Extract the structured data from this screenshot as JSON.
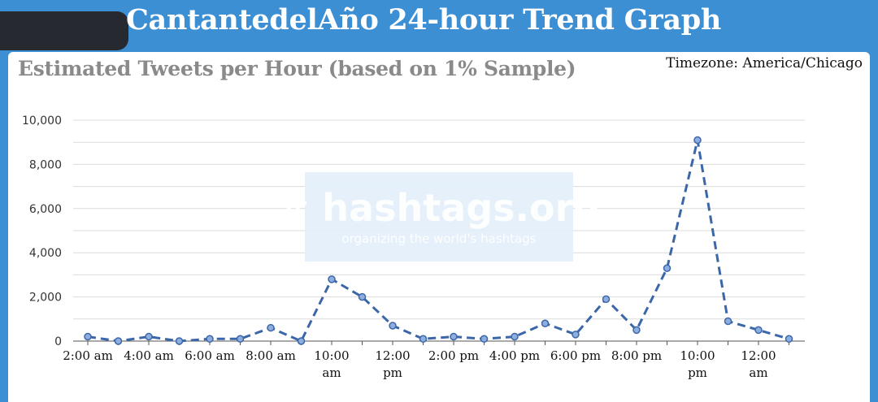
{
  "header": {
    "title": "CantantedelAño 24-hour Trend Graph"
  },
  "timezone": "Timezone: America/Chicago",
  "watermark": {
    "logo": "# hashtags.org",
    "tagline": "organizing the world's hashtags"
  },
  "colors": {
    "header_bg": "#3d8fd4",
    "line": "#3b67a8",
    "point_fill": "#8faee0"
  },
  "chart_data": {
    "type": "line",
    "title": "Estimated Tweets per Hour (based on 1% Sample)",
    "xlabel": "",
    "ylabel": "",
    "ylim": [
      0,
      10000
    ],
    "yticks": [
      0,
      2000,
      4000,
      6000,
      8000,
      10000
    ],
    "ytick_labels": [
      "0",
      "2,000",
      "4,000",
      "6,000",
      "8,000",
      "10,000"
    ],
    "x": [
      "2:00 am",
      "3:00 am",
      "4:00 am",
      "5:00 am",
      "6:00 am",
      "7:00 am",
      "8:00 am",
      "9:00 am",
      "10:00 am",
      "11:00 am",
      "12:00 pm",
      "1:00 pm",
      "2:00 pm",
      "3:00 pm",
      "4:00 pm",
      "5:00 pm",
      "6:00 pm",
      "7:00 pm",
      "8:00 pm",
      "9:00 pm",
      "10:00 pm",
      "11:00 pm",
      "12:00 am",
      "1:00 am"
    ],
    "xtick_labels": [
      [
        "2:00 am"
      ],
      [
        "4:00 am"
      ],
      [
        "6:00 am"
      ],
      [
        "8:00 am"
      ],
      [
        "10:00",
        "am"
      ],
      [
        "12:00",
        "pm"
      ],
      [
        "2:00 pm"
      ],
      [
        "4:00 pm"
      ],
      [
        "6:00 pm"
      ],
      [
        "8:00 pm"
      ],
      [
        "10:00",
        "pm"
      ],
      [
        "12:00",
        "am"
      ]
    ],
    "series": [
      {
        "values": [
          200,
          0,
          200,
          0,
          100,
          100,
          600,
          0,
          2800,
          2000,
          700,
          100,
          200,
          100,
          200,
          800,
          300,
          1900,
          500,
          3300,
          9100,
          900,
          500,
          100
        ]
      }
    ],
    "grid": true,
    "line_style": "dashed",
    "legend": "none"
  }
}
